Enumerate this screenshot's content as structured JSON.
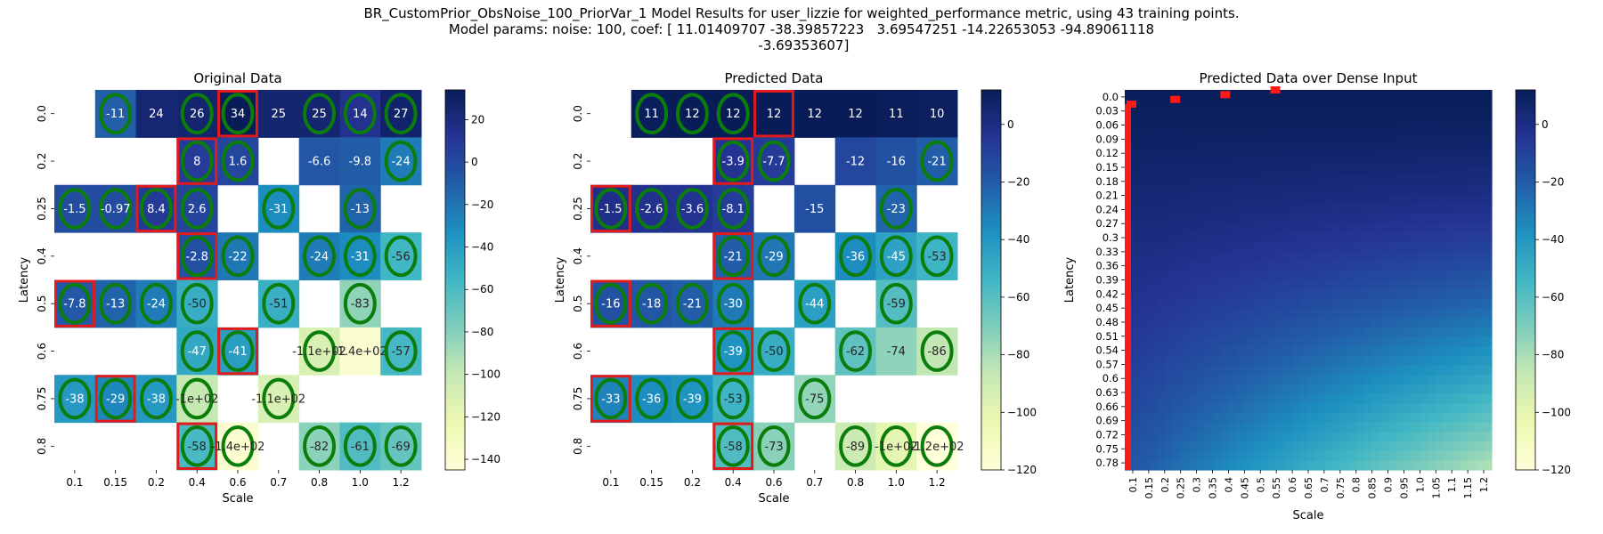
{
  "figure": {
    "title_lines": [
      "BR_CustomPrior_ObsNoise_100_PriorVar_1 Model Results for user_lizzie for weighted_performance metric, using 43 training points.",
      "Model params: noise: 100, coef: [ 11.01409707 -38.39857223   3.69547251 -14.22653053 -94.89061118",
      " -3.69353607]"
    ]
  },
  "chart_data": [
    {
      "type": "heatmap",
      "title": "Original Data",
      "xlabel": "Scale",
      "ylabel": "Latency",
      "x_categories": [
        "0.1",
        "0.15",
        "0.2",
        "0.4",
        "0.6",
        "0.7",
        "0.8",
        "1.0",
        "1.2"
      ],
      "y_categories": [
        "0.0",
        "0.2",
        "0.25",
        "0.4",
        "0.5",
        "0.6",
        "0.75",
        "0.8"
      ],
      "colorbar": {
        "min": -145,
        "max": 34,
        "ticks": [
          20,
          0,
          -20,
          -40,
          -60,
          -80,
          -100,
          -120,
          -140
        ],
        "tick_labels": [
          "20",
          "0",
          "−20",
          "−40",
          "−60",
          "−80",
          "−100",
          "−120",
          "−140"
        ]
      },
      "cells": [
        {
          "row": 0,
          "col": 1,
          "value": -11,
          "label": "-11",
          "circle": true
        },
        {
          "row": 0,
          "col": 2,
          "value": 24,
          "label": "24"
        },
        {
          "row": 0,
          "col": 3,
          "value": 26,
          "label": "26",
          "circle": true
        },
        {
          "row": 0,
          "col": 4,
          "value": 34,
          "label": "34",
          "circle": true,
          "box": true
        },
        {
          "row": 0,
          "col": 5,
          "value": 25,
          "label": "25"
        },
        {
          "row": 0,
          "col": 6,
          "value": 25,
          "label": "25",
          "circle": true
        },
        {
          "row": 0,
          "col": 7,
          "value": 14,
          "label": "14",
          "circle": true
        },
        {
          "row": 0,
          "col": 8,
          "value": 27,
          "label": "27",
          "circle": true
        },
        {
          "row": 1,
          "col": 3,
          "value": 8,
          "label": "8",
          "circle": true,
          "box": true
        },
        {
          "row": 1,
          "col": 4,
          "value": 1.6,
          "label": "1.6",
          "circle": true
        },
        {
          "row": 1,
          "col": 6,
          "value": -6.6,
          "label": "-6.6"
        },
        {
          "row": 1,
          "col": 7,
          "value": -9.8,
          "label": "-9.8"
        },
        {
          "row": 1,
          "col": 8,
          "value": -24,
          "label": "-24",
          "circle": true
        },
        {
          "row": 2,
          "col": 0,
          "value": -1.5,
          "label": "-1.5",
          "circle": true
        },
        {
          "row": 2,
          "col": 1,
          "value": -0.97,
          "label": "-0.97",
          "circle": true
        },
        {
          "row": 2,
          "col": 2,
          "value": 8.4,
          "label": "8.4",
          "circle": true,
          "box": true
        },
        {
          "row": 2,
          "col": 3,
          "value": 2.6,
          "label": "2.6",
          "circle": true
        },
        {
          "row": 2,
          "col": 5,
          "value": -31,
          "label": "-31",
          "circle": true
        },
        {
          "row": 2,
          "col": 7,
          "value": -13,
          "label": "-13",
          "circle": true
        },
        {
          "row": 3,
          "col": 3,
          "value": -2.8,
          "label": "-2.8",
          "circle": true,
          "box": true
        },
        {
          "row": 3,
          "col": 4,
          "value": -22,
          "label": "-22",
          "circle": true
        },
        {
          "row": 3,
          "col": 6,
          "value": -24,
          "label": "-24",
          "circle": true
        },
        {
          "row": 3,
          "col": 7,
          "value": -31,
          "label": "-31",
          "circle": true
        },
        {
          "row": 3,
          "col": 8,
          "value": -56,
          "label": "-56",
          "circle": true
        },
        {
          "row": 4,
          "col": 0,
          "value": -7.8,
          "label": "-7.8",
          "circle": true,
          "box": true
        },
        {
          "row": 4,
          "col": 1,
          "value": -13,
          "label": "-13",
          "circle": true
        },
        {
          "row": 4,
          "col": 2,
          "value": -24,
          "label": "-24",
          "circle": true
        },
        {
          "row": 4,
          "col": 3,
          "value": -50,
          "label": "-50",
          "circle": true
        },
        {
          "row": 4,
          "col": 5,
          "value": -51,
          "label": "-51",
          "circle": true
        },
        {
          "row": 4,
          "col": 7,
          "value": -83,
          "label": "-83",
          "circle": true
        },
        {
          "row": 5,
          "col": 3,
          "value": -47,
          "label": "-47",
          "circle": true
        },
        {
          "row": 5,
          "col": 4,
          "value": -41,
          "label": "-41",
          "circle": true,
          "box": true
        },
        {
          "row": 5,
          "col": 6,
          "value": -110,
          "label": "-1.1e+02",
          "circle": true
        },
        {
          "row": 5,
          "col": 7,
          "value": -140,
          "label": "-1.4e+02"
        },
        {
          "row": 5,
          "col": 8,
          "value": -57,
          "label": "-57",
          "circle": true
        },
        {
          "row": 6,
          "col": 0,
          "value": -38,
          "label": "-38",
          "circle": true
        },
        {
          "row": 6,
          "col": 1,
          "value": -29,
          "label": "-29",
          "circle": true,
          "box": true
        },
        {
          "row": 6,
          "col": 2,
          "value": -38,
          "label": "-38",
          "circle": true
        },
        {
          "row": 6,
          "col": 3,
          "value": -100,
          "label": "-1e+02",
          "circle": true
        },
        {
          "row": 6,
          "col": 5,
          "value": -110,
          "label": "-1.1e+02",
          "circle": true
        },
        {
          "row": 7,
          "col": 3,
          "value": -58,
          "label": "-58",
          "circle": true,
          "box": true
        },
        {
          "row": 7,
          "col": 4,
          "value": -140,
          "label": "-1.4e+02",
          "circle": true
        },
        {
          "row": 7,
          "col": 6,
          "value": -82,
          "label": "-82",
          "circle": true
        },
        {
          "row": 7,
          "col": 7,
          "value": -61,
          "label": "-61",
          "circle": true
        },
        {
          "row": 7,
          "col": 8,
          "value": -69,
          "label": "-69",
          "circle": true
        }
      ]
    },
    {
      "type": "heatmap",
      "title": "Predicted Data",
      "xlabel": "Scale",
      "ylabel": "Latency",
      "x_categories": [
        "0.1",
        "0.15",
        "0.2",
        "0.4",
        "0.6",
        "0.7",
        "0.8",
        "1.0",
        "1.2"
      ],
      "y_categories": [
        "0.0",
        "0.2",
        "0.25",
        "0.4",
        "0.5",
        "0.6",
        "0.75",
        "0.8"
      ],
      "colorbar": {
        "min": -120,
        "max": 12,
        "ticks": [
          0,
          -20,
          -40,
          -60,
          -80,
          -100,
          -120
        ],
        "tick_labels": [
          "0",
          "−20",
          "−40",
          "−60",
          "−80",
          "−100",
          "−120"
        ]
      },
      "cells": [
        {
          "row": 0,
          "col": 1,
          "value": 11,
          "label": "11",
          "circle": true
        },
        {
          "row": 0,
          "col": 2,
          "value": 12,
          "label": "12",
          "circle": true
        },
        {
          "row": 0,
          "col": 3,
          "value": 12,
          "label": "12",
          "circle": true
        },
        {
          "row": 0,
          "col": 4,
          "value": 12,
          "label": "12",
          "box": true
        },
        {
          "row": 0,
          "col": 5,
          "value": 12,
          "label": "12"
        },
        {
          "row": 0,
          "col": 6,
          "value": 12,
          "label": "12"
        },
        {
          "row": 0,
          "col": 7,
          "value": 11,
          "label": "11"
        },
        {
          "row": 0,
          "col": 8,
          "value": 10,
          "label": "10"
        },
        {
          "row": 1,
          "col": 3,
          "value": -3.9,
          "label": "-3.9",
          "circle": true,
          "box": true
        },
        {
          "row": 1,
          "col": 4,
          "value": -7.7,
          "label": "-7.7",
          "circle": true
        },
        {
          "row": 1,
          "col": 6,
          "value": -12,
          "label": "-12"
        },
        {
          "row": 1,
          "col": 7,
          "value": -16,
          "label": "-16"
        },
        {
          "row": 1,
          "col": 8,
          "value": -21,
          "label": "-21",
          "circle": true
        },
        {
          "row": 2,
          "col": 0,
          "value": -1.5,
          "label": "-1.5",
          "circle": true,
          "box": true
        },
        {
          "row": 2,
          "col": 1,
          "value": -2.6,
          "label": "-2.6",
          "circle": true
        },
        {
          "row": 2,
          "col": 2,
          "value": -3.6,
          "label": "-3.6",
          "circle": true
        },
        {
          "row": 2,
          "col": 3,
          "value": -8.1,
          "label": "-8.1",
          "circle": true
        },
        {
          "row": 2,
          "col": 5,
          "value": -15,
          "label": "-15"
        },
        {
          "row": 2,
          "col": 7,
          "value": -23,
          "label": "-23",
          "circle": true
        },
        {
          "row": 3,
          "col": 3,
          "value": -21,
          "label": "-21",
          "circle": true,
          "box": true
        },
        {
          "row": 3,
          "col": 4,
          "value": -29,
          "label": "-29",
          "circle": true
        },
        {
          "row": 3,
          "col": 6,
          "value": -36,
          "label": "-36",
          "circle": true
        },
        {
          "row": 3,
          "col": 7,
          "value": -45,
          "label": "-45",
          "circle": true
        },
        {
          "row": 3,
          "col": 8,
          "value": -53,
          "label": "-53",
          "circle": true
        },
        {
          "row": 4,
          "col": 0,
          "value": -16,
          "label": "-16",
          "circle": true,
          "box": true
        },
        {
          "row": 4,
          "col": 1,
          "value": -18,
          "label": "-18",
          "circle": true
        },
        {
          "row": 4,
          "col": 2,
          "value": -21,
          "label": "-21",
          "circle": true
        },
        {
          "row": 4,
          "col": 3,
          "value": -30,
          "label": "-30",
          "circle": true
        },
        {
          "row": 4,
          "col": 5,
          "value": -44,
          "label": "-44",
          "circle": true
        },
        {
          "row": 4,
          "col": 7,
          "value": -59,
          "label": "-59",
          "circle": true
        },
        {
          "row": 5,
          "col": 3,
          "value": -39,
          "label": "-39",
          "circle": true,
          "box": true
        },
        {
          "row": 5,
          "col": 4,
          "value": -50,
          "label": "-50",
          "circle": true
        },
        {
          "row": 5,
          "col": 6,
          "value": -62,
          "label": "-62",
          "circle": true
        },
        {
          "row": 5,
          "col": 7,
          "value": -74,
          "label": "-74"
        },
        {
          "row": 5,
          "col": 8,
          "value": -86,
          "label": "-86",
          "circle": true
        },
        {
          "row": 6,
          "col": 0,
          "value": -33,
          "label": "-33",
          "circle": true,
          "box": true
        },
        {
          "row": 6,
          "col": 1,
          "value": -36,
          "label": "-36",
          "circle": true
        },
        {
          "row": 6,
          "col": 2,
          "value": -39,
          "label": "-39",
          "circle": true
        },
        {
          "row": 6,
          "col": 3,
          "value": -53,
          "label": "-53",
          "circle": true
        },
        {
          "row": 6,
          "col": 5,
          "value": -75,
          "label": "-75",
          "circle": true
        },
        {
          "row": 7,
          "col": 3,
          "value": -58,
          "label": "-58",
          "circle": true,
          "box": true
        },
        {
          "row": 7,
          "col": 4,
          "value": -73,
          "label": "-73",
          "circle": true
        },
        {
          "row": 7,
          "col": 6,
          "value": -89,
          "label": "-89",
          "circle": true
        },
        {
          "row": 7,
          "col": 7,
          "value": -100,
          "label": "-1e+02",
          "circle": true
        },
        {
          "row": 7,
          "col": 8,
          "value": -120,
          "label": "-1.2e+02",
          "circle": true
        }
      ]
    },
    {
      "type": "heatmap",
      "title": "Predicted Data over Dense Input",
      "xlabel": "Scale",
      "ylabel": "Latency",
      "x_tick_labels": [
        "0.1",
        "0.15",
        "0.2",
        "0.25",
        "0.3",
        "0.35",
        "0.4",
        "0.45",
        "0.5",
        "0.55",
        "0.6",
        "0.65",
        "0.7",
        "0.75",
        "0.8",
        "0.85",
        "0.9",
        "0.95",
        "1.0",
        "1.05",
        "1.1",
        "1.15",
        "1.2"
      ],
      "y_tick_labels": [
        "0.0",
        "0.03",
        "0.06",
        "0.09",
        "0.12",
        "0.15",
        "0.18",
        "0.21",
        "0.24",
        "0.27",
        "0.3",
        "0.33",
        "0.36",
        "0.39",
        "0.42",
        "0.45",
        "0.48",
        "0.51",
        "0.54",
        "0.57",
        "0.6",
        "0.63",
        "0.66",
        "0.69",
        "0.72",
        "0.75",
        "0.78"
      ],
      "x_range": [
        0.1,
        1.2
      ],
      "y_range": [
        0.0,
        0.8
      ],
      "colorbar": {
        "min": -120,
        "max": 12,
        "ticks": [
          0,
          -20,
          -40,
          -60,
          -80,
          -100,
          -120
        ],
        "tick_labels": [
          "0",
          "−20",
          "−40",
          "−60",
          "−80",
          "−100",
          "−120"
        ]
      },
      "highlight_points": [
        {
          "x": 0.1,
          "y": 0.03
        },
        {
          "x": 0.25,
          "y": 0.02
        },
        {
          "x": 0.4,
          "y": 0.01
        },
        {
          "x": 0.55,
          "y": 0.0
        }
      ],
      "highlight_column_x": 0.1
    }
  ],
  "colors": {
    "circle": "#0a7d0a",
    "box": "#e31a1c"
  }
}
